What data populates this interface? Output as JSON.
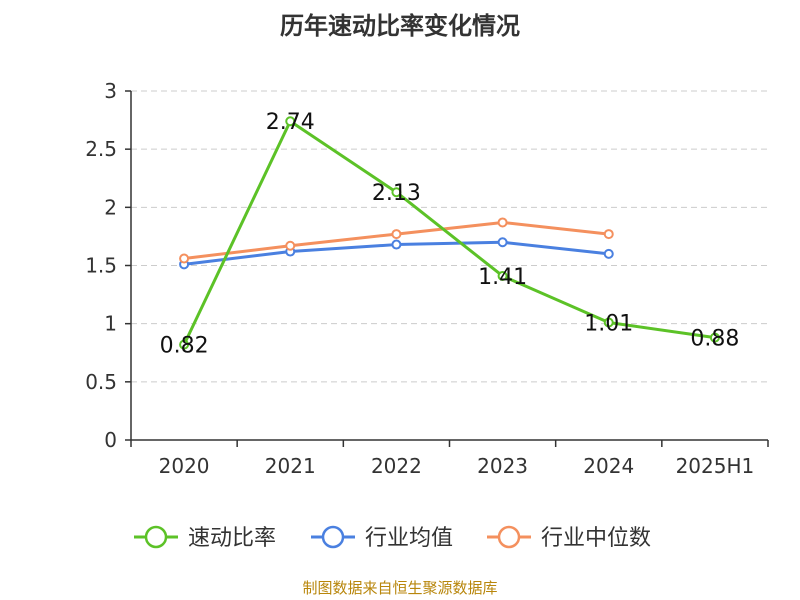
{
  "title": "历年速动比率变化情况",
  "footer": "制图数据来自恒生聚源数据库",
  "colors": {
    "axis": "#333333",
    "grid": "#cccccc",
    "footer": "#b8860b"
  },
  "chart_data": {
    "type": "line",
    "title": "历年速动比率变化情况",
    "categories": [
      "2020",
      "2021",
      "2022",
      "2023",
      "2024",
      "2025H1"
    ],
    "ylim": [
      0,
      3
    ],
    "yticks": [
      0,
      0.5,
      1,
      1.5,
      2,
      2.5,
      3
    ],
    "ytick_labels": [
      "0",
      "0.5",
      "1",
      "1.5",
      "2",
      "2.5",
      "3"
    ],
    "grid": true,
    "legend_position": "bottom",
    "series": [
      {
        "name": "速动比率",
        "color": "#5cc227",
        "values": [
          0.82,
          2.74,
          2.13,
          1.41,
          1.01,
          0.88
        ],
        "labels": [
          "0.82",
          "2.74",
          "2.13",
          "1.41",
          "1.01",
          "0.88"
        ],
        "show_labels": true
      },
      {
        "name": "行业均值",
        "color": "#4a80e0",
        "values": [
          1.51,
          1.62,
          1.68,
          1.7,
          1.6,
          null
        ],
        "show_labels": false
      },
      {
        "name": "行业中位数",
        "color": "#f4905e",
        "values": [
          1.56,
          1.67,
          1.77,
          1.87,
          1.77,
          null
        ],
        "show_labels": false
      }
    ]
  }
}
